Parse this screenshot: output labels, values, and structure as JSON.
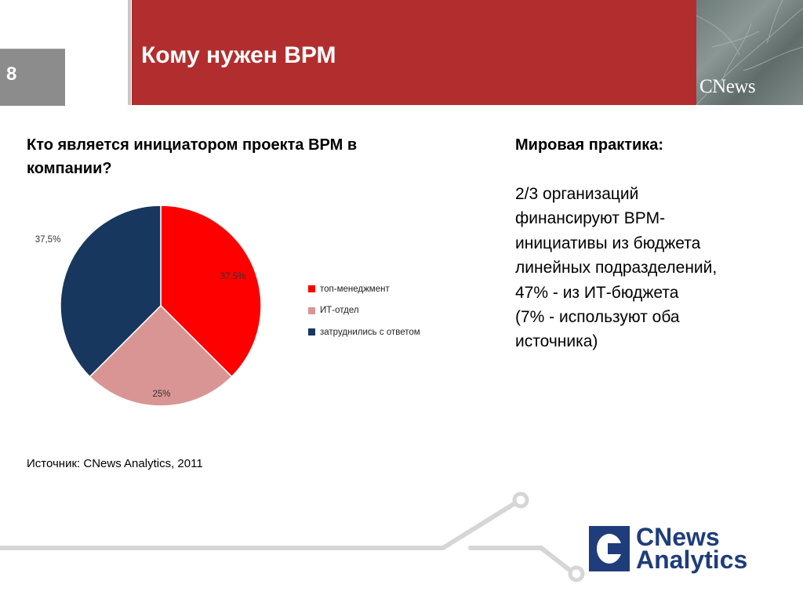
{
  "slide": {
    "number": "8",
    "title": "Кому нужен ВРМ"
  },
  "header_logo": "CNews",
  "question": "Кто является инициатором проекта ВРМ в компании?",
  "practice": {
    "title": "Мировая практика:",
    "lines": [
      "2/3 организаций",
      "финансируют ВРМ-",
      "инициативы из бюджета",
      "линейных подразделений,",
      "47% - из ИТ-бюджета",
      "(7% - используют оба",
      "источника)"
    ]
  },
  "source": "Источник: CNews Analytics, 2011",
  "footer_logo": {
    "line1": "CNews",
    "line2": "Analytics"
  },
  "colors": {
    "header_red": "#b22e2e",
    "slice_top_management": "#ff0000",
    "slice_it": "#d99594",
    "slice_undecided": "#17375e",
    "logo_blue": "#1f3d7a"
  },
  "chart_data": {
    "type": "pie",
    "categories": [
      "топ-менеджмент",
      "ИТ-отдел",
      "затруднились с ответом"
    ],
    "values": [
      37.5,
      25,
      37.5
    ],
    "labels": [
      "37,5%",
      "25%",
      "37,5%"
    ],
    "colors": [
      "#ff0000",
      "#d99594",
      "#17375e"
    ],
    "start_angle_deg": 0,
    "legend_position": "right"
  }
}
